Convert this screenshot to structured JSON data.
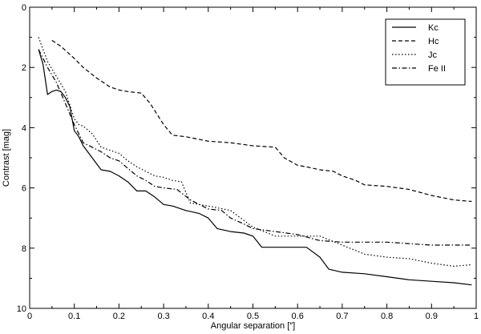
{
  "chart_data": {
    "type": "line",
    "title": "",
    "xlabel": "Angular separation [″]",
    "ylabel": "Contrast [mag]",
    "xlim": [
      0,
      1
    ],
    "ylim": [
      0,
      10
    ],
    "y_inverted": true,
    "x_ticks": [
      "0",
      "0.1",
      "0.2",
      "0.3",
      "0.4",
      "0.5",
      "0.6",
      "0.7",
      "0.8",
      "0.9",
      "1"
    ],
    "x_tick_values": [
      0,
      0.1,
      0.2,
      0.3,
      0.4,
      0.5,
      0.6,
      0.7,
      0.8,
      0.9,
      1
    ],
    "y_ticks": [
      "0",
      "2",
      "4",
      "6",
      "8",
      "10"
    ],
    "y_tick_values": [
      0,
      2,
      4,
      6,
      8,
      10
    ],
    "grid": false,
    "legend_position": "top-right",
    "series": [
      {
        "name": "Kc",
        "style": "solid",
        "x": [
          0.02,
          0.03,
          0.04,
          0.05,
          0.06,
          0.07,
          0.08,
          0.09,
          0.1,
          0.11,
          0.12,
          0.14,
          0.16,
          0.18,
          0.2,
          0.22,
          0.24,
          0.26,
          0.28,
          0.3,
          0.32,
          0.35,
          0.38,
          0.4,
          0.42,
          0.45,
          0.48,
          0.5,
          0.52,
          0.55,
          0.58,
          0.6,
          0.62,
          0.65,
          0.67,
          0.7,
          0.75,
          0.8,
          0.85,
          0.9,
          0.95,
          0.99
        ],
        "values": [
          1.4,
          1.9,
          2.9,
          2.8,
          2.75,
          2.8,
          3.0,
          3.3,
          4.1,
          4.3,
          4.6,
          5.0,
          5.4,
          5.45,
          5.6,
          5.8,
          6.1,
          6.1,
          6.3,
          6.55,
          6.6,
          6.75,
          6.85,
          7.0,
          7.35,
          7.45,
          7.5,
          7.6,
          7.97,
          7.97,
          7.97,
          7.97,
          7.97,
          8.3,
          8.7,
          8.8,
          8.85,
          8.95,
          9.05,
          9.1,
          9.15,
          9.22
        ]
      },
      {
        "name": "Hc",
        "style": "dashed",
        "x": [
          0.05,
          0.07,
          0.1,
          0.12,
          0.15,
          0.18,
          0.2,
          0.22,
          0.25,
          0.27,
          0.3,
          0.32,
          0.35,
          0.4,
          0.45,
          0.5,
          0.55,
          0.57,
          0.6,
          0.62,
          0.65,
          0.68,
          0.7,
          0.73,
          0.75,
          0.8,
          0.85,
          0.9,
          0.95,
          0.99
        ],
        "values": [
          1.1,
          1.3,
          1.7,
          2.0,
          2.35,
          2.65,
          2.75,
          2.8,
          2.85,
          3.2,
          3.9,
          4.25,
          4.3,
          4.45,
          4.5,
          4.6,
          4.65,
          5.0,
          5.25,
          5.3,
          5.4,
          5.45,
          5.6,
          5.75,
          5.9,
          5.95,
          6.05,
          6.25,
          6.4,
          6.45
        ]
      },
      {
        "name": "Jc",
        "style": "dotted",
        "x": [
          0.02,
          0.04,
          0.06,
          0.08,
          0.1,
          0.11,
          0.12,
          0.14,
          0.16,
          0.18,
          0.2,
          0.22,
          0.24,
          0.26,
          0.28,
          0.3,
          0.32,
          0.34,
          0.36,
          0.38,
          0.4,
          0.45,
          0.5,
          0.55,
          0.6,
          0.65,
          0.7,
          0.75,
          0.8,
          0.85,
          0.9,
          0.95,
          0.99
        ],
        "values": [
          1.0,
          1.8,
          2.3,
          2.8,
          3.7,
          3.9,
          3.95,
          4.2,
          4.65,
          4.75,
          4.85,
          5.1,
          5.3,
          5.45,
          5.6,
          5.65,
          5.75,
          5.8,
          6.5,
          6.55,
          6.6,
          6.75,
          7.3,
          7.6,
          7.6,
          7.6,
          7.9,
          8.2,
          8.3,
          8.35,
          8.5,
          8.6,
          8.55
        ]
      },
      {
        "name": "Fe II",
        "style": "dashdot",
        "x": [
          0.02,
          0.04,
          0.06,
          0.08,
          0.1,
          0.12,
          0.14,
          0.16,
          0.18,
          0.2,
          0.22,
          0.24,
          0.26,
          0.28,
          0.3,
          0.33,
          0.36,
          0.4,
          0.43,
          0.45,
          0.48,
          0.5,
          0.55,
          0.6,
          0.65,
          0.7,
          0.75,
          0.8,
          0.85,
          0.9,
          0.95,
          0.99
        ],
        "values": [
          1.4,
          2.0,
          2.5,
          3.2,
          3.9,
          4.5,
          4.65,
          4.8,
          5.0,
          5.1,
          5.35,
          5.6,
          5.75,
          5.95,
          6.0,
          6.05,
          6.4,
          6.7,
          6.75,
          7.0,
          7.2,
          7.35,
          7.45,
          7.55,
          7.75,
          7.8,
          7.8,
          7.8,
          7.85,
          7.9,
          7.9,
          7.9
        ]
      }
    ]
  }
}
